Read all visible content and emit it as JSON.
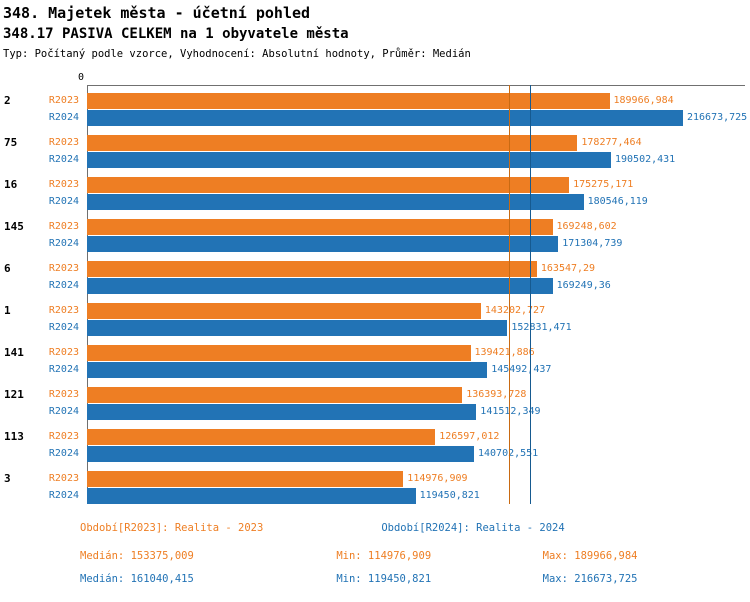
{
  "header": {
    "title": "348. Majetek města - účetní pohled",
    "subtitle": "348.17 PASIVA CELKEM na 1 obyvatele města",
    "meta": "Typ: Počítaný podle vzorce, Vyhodnocení: Absolutní hodnoty, Průměr: Medián"
  },
  "chart_data": {
    "type": "bar",
    "orientation": "horizontal",
    "origin_label": "0",
    "xlim": [
      0,
      216673.725
    ],
    "grid": false,
    "legend_position": "bottom",
    "categories": [
      "2",
      "75",
      "16",
      "145",
      "6",
      "1",
      "141",
      "121",
      "113",
      "3"
    ],
    "series": [
      {
        "name": "R2023",
        "color": "#EE7E23",
        "values": [
          189966.984,
          178277.464,
          175275.171,
          169248.602,
          163547.29,
          143202.727,
          139421.886,
          136393.728,
          126597.012,
          114976.909
        ],
        "labels": [
          "189966,984",
          "178277,464",
          "175275,171",
          "169248,602",
          "163547,29",
          "143202,727",
          "139421,886",
          "136393,728",
          "126597,012",
          "114976,909"
        ]
      },
      {
        "name": "R2024",
        "color": "#2273B5",
        "values": [
          216673.725,
          190502.431,
          180546.119,
          171304.739,
          169249.36,
          152831.471,
          145492.437,
          141512.349,
          140702.551,
          119450.821
        ],
        "labels": [
          "216673,725",
          "190502,431",
          "180546,119",
          "171304,739",
          "169249,36",
          "152831,471",
          "145492,437",
          "141512,349",
          "140702,551",
          "119450,821"
        ]
      }
    ],
    "medians": [
      {
        "series": "R2023",
        "value": 153375.009,
        "line_color": "#C96A12"
      },
      {
        "series": "R2024",
        "value": 161040.415,
        "line_color": "#165A90"
      }
    ]
  },
  "legend": [
    {
      "label": "Období[R2023]: Realita - 2023",
      "color": "#EE7E23"
    },
    {
      "label": "Období[R2024]: Realita - 2024",
      "color": "#2273B5"
    }
  ],
  "stats": [
    {
      "median_label": "Medián: 153375,009",
      "min_label": "Min: 114976,909",
      "max_label": "Max: 189966,984",
      "color": "#EE7E23"
    },
    {
      "median_label": "Medián: 161040,415",
      "min_label": "Min: 119450,821",
      "max_label": "Max: 216673,725",
      "color": "#2273B5"
    }
  ]
}
